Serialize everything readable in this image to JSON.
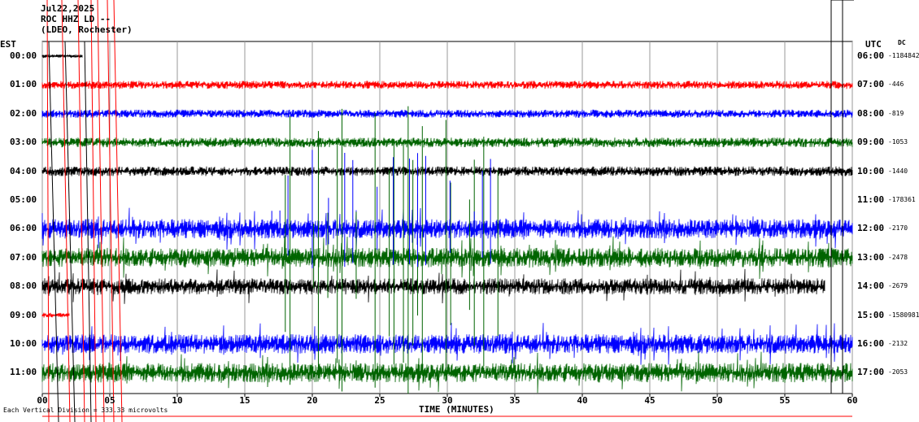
{
  "header": {
    "date": "Jul22,2025",
    "station": "ROC HHZ LD --",
    "location": "(LDEO, Rochester)"
  },
  "axis": {
    "left_title": "EST",
    "right_title": "UTC",
    "dc_title": "DC",
    "xlabel": "TIME (MINUTES)",
    "footer": "Each Vertical Division = 333.33 microvolts"
  },
  "chart_data": {
    "type": "line",
    "x_range": [
      0,
      60
    ],
    "x_ticks": [
      "00",
      "05",
      "10",
      "15",
      "20",
      "25",
      "30",
      "35",
      "40",
      "45",
      "50",
      "55",
      "60"
    ],
    "grid": "vertical lines every 5 minutes",
    "rows": [
      {
        "est": "00:00",
        "utc": "06:00",
        "dc": "-1184842",
        "color": "#000000",
        "start": 0,
        "end": 3,
        "amp": 2
      },
      {
        "est": "01:00",
        "utc": "07:00",
        "dc": "-446",
        "color": "#ff0000",
        "start": 0,
        "end": 60,
        "amp": 5
      },
      {
        "est": "02:00",
        "utc": "08:00",
        "dc": "-819",
        "color": "#0000ff",
        "start": 0,
        "end": 60,
        "amp": 5
      },
      {
        "est": "03:00",
        "utc": "09:00",
        "dc": "-1053",
        "color": "#006400",
        "start": 0,
        "end": 60,
        "amp": 6
      },
      {
        "est": "04:00",
        "utc": "10:00",
        "dc": "-1440",
        "color": "#000000",
        "start": 0,
        "end": 60,
        "amp": 6
      },
      {
        "est": "05:00",
        "utc": "11:00",
        "dc": "-178361",
        "color": "#ff0000",
        "start": 0,
        "end": 0,
        "amp": 0
      },
      {
        "est": "06:00",
        "utc": "12:00",
        "dc": "-2170",
        "color": "#0000ff",
        "start": 0,
        "end": 60,
        "amp": 12
      },
      {
        "est": "07:00",
        "utc": "13:00",
        "dc": "-2478",
        "color": "#006400",
        "start": 0,
        "end": 60,
        "amp": 12
      },
      {
        "est": "08:00",
        "utc": "14:00",
        "dc": "-2679",
        "color": "#000000",
        "start": 0,
        "end": 58,
        "amp": 10
      },
      {
        "est": "09:00",
        "utc": "15:00",
        "dc": "-1580981",
        "color": "#ff0000",
        "start": 0,
        "end": 2,
        "amp": 3
      },
      {
        "est": "10:00",
        "utc": "16:00",
        "dc": "-2132",
        "color": "#0000ff",
        "start": 0,
        "end": 60,
        "amp": 12
      },
      {
        "est": "11:00",
        "utc": "17:00",
        "dc": "-2053",
        "color": "#006400",
        "start": 0,
        "end": 60,
        "amp": 12
      }
    ]
  }
}
